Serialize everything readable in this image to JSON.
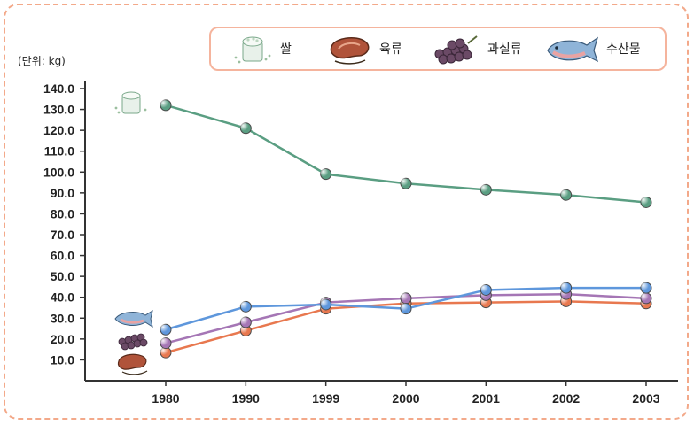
{
  "unit_label": "(단위: kg)",
  "legend": [
    {
      "label": "쌀",
      "icon": "rice-icon"
    },
    {
      "label": "육류",
      "icon": "meat-icon"
    },
    {
      "label": "과실류",
      "icon": "grape-icon"
    },
    {
      "label": "수산물",
      "icon": "fish-icon"
    }
  ],
  "chart_data": {
    "type": "line",
    "title": "",
    "xlabel": "",
    "ylabel": "(단위: kg)",
    "ylim": [
      0,
      140
    ],
    "yticks": [
      "10.0",
      "20.0",
      "30.0",
      "40.0",
      "50.0",
      "60.0",
      "70.0",
      "80.0",
      "90.0",
      "100.0",
      "110.0",
      "120.0",
      "130.0",
      "140.0"
    ],
    "categories": [
      "1980",
      "1990",
      "1999",
      "2000",
      "2001",
      "2002",
      "2003"
    ],
    "grid": false,
    "legend_position": "top",
    "series": [
      {
        "name": "쌀",
        "color": "#5a9e82",
        "values": [
          132.0,
          121.0,
          99.0,
          94.5,
          91.5,
          89.0,
          85.5
        ]
      },
      {
        "name": "육류",
        "color": "#e8784f",
        "values": [
          13.5,
          24.0,
          34.5,
          37.0,
          37.5,
          38.0,
          37.0
        ]
      },
      {
        "name": "과실류",
        "color": "#a576b5",
        "values": [
          18.0,
          28.0,
          37.5,
          39.5,
          41.0,
          41.5,
          39.5
        ]
      },
      {
        "name": "수산물",
        "color": "#5e97dc",
        "values": [
          24.5,
          35.5,
          36.5,
          34.5,
          43.5,
          44.5,
          44.5
        ]
      }
    ]
  }
}
